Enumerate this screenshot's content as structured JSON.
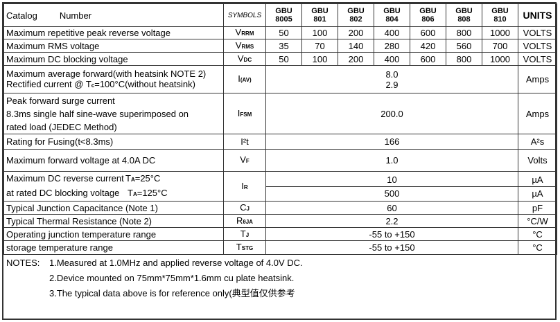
{
  "header": {
    "catalog": "Catalog",
    "number": "Number",
    "symbols": "SYMBOLS",
    "models": [
      [
        "GBU",
        "8005"
      ],
      [
        "GBU",
        "801"
      ],
      [
        "GBU",
        "802"
      ],
      [
        "GBU",
        "804"
      ],
      [
        "GBU",
        "806"
      ],
      [
        "GBU",
        "808"
      ],
      [
        "GBU",
        "810"
      ]
    ],
    "units": "UNITS"
  },
  "rows": [
    {
      "label": "Maximum repetitive peak reverse voltage",
      "sym": "V",
      "sub": "RRM",
      "values": [
        "50",
        "100",
        "200",
        "400",
        "600",
        "800",
        "1000"
      ],
      "unit": "VOLTS"
    },
    {
      "label": "Maximum RMS voltage",
      "sym": "V",
      "sub": "RMS",
      "values": [
        "35",
        "70",
        "140",
        "280",
        "420",
        "560",
        "700"
      ],
      "unit": "VOLTS"
    },
    {
      "label": "Maximum DC blocking voltage",
      "sym": "V",
      "sub": "DC",
      "values": [
        "50",
        "100",
        "200",
        "400",
        "600",
        "800",
        "1000"
      ],
      "unit": "VOLTS"
    }
  ],
  "iav": {
    "line1": "Maximum average forward(with heatsink NOTE 2)",
    "line2": "Rectified current    @ T",
    "line2_sub": "c",
    "line2_end": "=100°C(without heatsink)",
    "sym": "I",
    "sub": "(AV)",
    "value1": "8.0",
    "value2": "2.9",
    "unit": "Amps"
  },
  "ifsm": {
    "line1": "Peak forward surge current",
    "line2": "8.3ms single half sine-wave superimposed on",
    "line3": "rated load (JEDEC Method)",
    "sym": "I",
    "sub": "FSM",
    "value": "200.0",
    "unit": "Amps"
  },
  "fusing": {
    "label": "Rating for Fusing(t<8.3ms)",
    "sym": "I²t",
    "value": "166",
    "unit": "A²s"
  },
  "vf": {
    "label": "Maximum  forward voltage at 4.0A DC",
    "sym": "V",
    "sub": "F",
    "value": "1.0",
    "unit": "Volts"
  },
  "ir": {
    "line1": "Maximum DC reverse current",
    "t1": "T",
    "t1_sub": "A",
    "t1_end": "=25°C",
    "line2": "at rated DC blocking voltage",
    "t2": "T",
    "t2_sub": "A",
    "t2_end": "=125°C",
    "sym": "I",
    "sub": "R",
    "value1": "10",
    "value2": "500",
    "unit1": "µA",
    "unit2": "µA"
  },
  "cj": {
    "label": "Typical Junction Capacitance (Note 1)",
    "sym": "C",
    "sub": "J",
    "value": "60",
    "unit": "pF"
  },
  "rth": {
    "label": "Typical Thermal Resistance (Note 2)",
    "sym": "R",
    "sub": "θJA",
    "value": "2.2",
    "unit": "°C/W"
  },
  "tj": {
    "label": "Operating junction temperature range",
    "sym": "T",
    "sub": "J",
    "value": "-55 to +150",
    "unit": "°C"
  },
  "tstg": {
    "label": "storage temperature range",
    "sym": "T",
    "sub": "STG",
    "value": "-55 to +150",
    "unit": "°C"
  },
  "notes": {
    "title": "NOTES:",
    "n1": "1.Measured at 1.0MHz and applied reverse voltage of 4.0V DC.",
    "n2": "2.Device mounted on 75mm*75mm*1.6mm cu plate heatsink.",
    "n3": "3.The typical data above is for reference only(典型值仅供参考"
  }
}
